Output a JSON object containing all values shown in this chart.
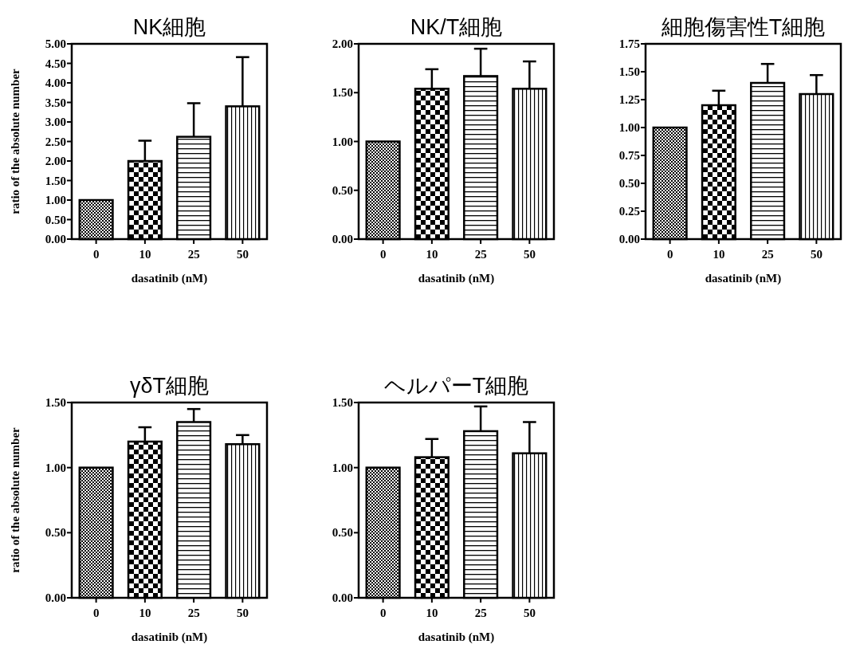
{
  "chart_data": [
    {
      "type": "bar",
      "title": "NK細胞",
      "xlabel": "dasatinib (nM)",
      "ylabel": "ratio  of the absolute number",
      "categories": [
        "0",
        "10",
        "25",
        "50"
      ],
      "values": [
        1.0,
        2.0,
        2.62,
        3.4
      ],
      "errors": [
        null,
        [
          2.0,
          2.52
        ],
        [
          2.62,
          3.48
        ],
        [
          3.4,
          4.66
        ]
      ],
      "ylim": [
        0,
        5
      ],
      "yticks": [
        {
          "value": 0,
          "label": "0.00"
        },
        {
          "value": 0.5,
          "label": "0.50"
        },
        {
          "value": 1,
          "label": "1.00"
        },
        {
          "value": 1.5,
          "label": "1.50"
        },
        {
          "value": 2,
          "label": "2.00"
        },
        {
          "value": 2.5,
          "label": "2.50"
        },
        {
          "value": 3,
          "label": "3.00"
        },
        {
          "value": 3.5,
          "label": "3.50"
        },
        {
          "value": 4,
          "label": "4.00"
        },
        {
          "value": 4.5,
          "label": "4.50"
        },
        {
          "value": 5,
          "label": "5.00"
        }
      ]
    },
    {
      "type": "bar",
      "title": "NK/T細胞",
      "xlabel": "dasatinib (nM)",
      "categories": [
        "0",
        "10",
        "25",
        "50"
      ],
      "values": [
        1.0,
        1.54,
        1.67,
        1.54
      ],
      "errors": [
        null,
        [
          1.54,
          1.74
        ],
        [
          1.67,
          1.95
        ],
        [
          1.54,
          1.82
        ]
      ],
      "ylim": [
        0,
        2
      ],
      "yticks": [
        {
          "value": 0,
          "label": "0.00"
        },
        {
          "value": 0.5,
          "label": "0.50"
        },
        {
          "value": 1,
          "label": "1.00"
        },
        {
          "value": 1.5,
          "label": "1.50"
        },
        {
          "value": 2,
          "label": "2.00"
        }
      ]
    },
    {
      "type": "bar",
      "title": "細胞傷害性T細胞",
      "xlabel": "dasatinib (nM)",
      "categories": [
        "0",
        "10",
        "25",
        "50"
      ],
      "values": [
        1.0,
        1.2,
        1.4,
        1.3
      ],
      "errors": [
        null,
        [
          1.2,
          1.33
        ],
        [
          1.4,
          1.57
        ],
        [
          1.3,
          1.47
        ]
      ],
      "ylim": [
        0,
        1.75
      ],
      "yticks": [
        {
          "value": 0,
          "label": "0.00"
        },
        {
          "value": 0.25,
          "label": "0.25"
        },
        {
          "value": 0.5,
          "label": "0.50"
        },
        {
          "value": 0.75,
          "label": "0.75"
        },
        {
          "value": 1,
          "label": "1.00"
        },
        {
          "value": 1.25,
          "label": "1.25"
        },
        {
          "value": 1.5,
          "label": "1.50"
        },
        {
          "value": 1.75,
          "label": "1.75"
        }
      ]
    },
    {
      "type": "bar",
      "title": "γδT細胞",
      "xlabel": "dasatinib (nM)",
      "ylabel": "ratio  of the absolute number",
      "categories": [
        "0",
        "10",
        "25",
        "50"
      ],
      "values": [
        1.0,
        1.2,
        1.35,
        1.18
      ],
      "errors": [
        null,
        [
          1.2,
          1.31
        ],
        [
          1.35,
          1.45
        ],
        [
          1.18,
          1.25
        ]
      ],
      "ylim": [
        0,
        1.5
      ],
      "yticks": [
        {
          "value": 0,
          "label": "0.00"
        },
        {
          "value": 0.5,
          "label": "0.50"
        },
        {
          "value": 1,
          "label": "1.00"
        },
        {
          "value": 1.5,
          "label": "1.50"
        }
      ]
    },
    {
      "type": "bar",
      "title": "ヘルパーT細胞",
      "xlabel": "dasatinib (nM)",
      "categories": [
        "0",
        "10",
        "25",
        "50"
      ],
      "values": [
        1.0,
        1.08,
        1.28,
        1.11
      ],
      "errors": [
        null,
        [
          1.08,
          1.22
        ],
        [
          1.28,
          1.47
        ],
        [
          1.11,
          1.35
        ]
      ],
      "ylim": [
        0,
        1.5
      ],
      "yticks": [
        {
          "value": 0,
          "label": "0.00"
        },
        {
          "value": 0.5,
          "label": "0.50"
        },
        {
          "value": 1,
          "label": "1.00"
        },
        {
          "value": 1.5,
          "label": "1.50"
        }
      ]
    }
  ]
}
